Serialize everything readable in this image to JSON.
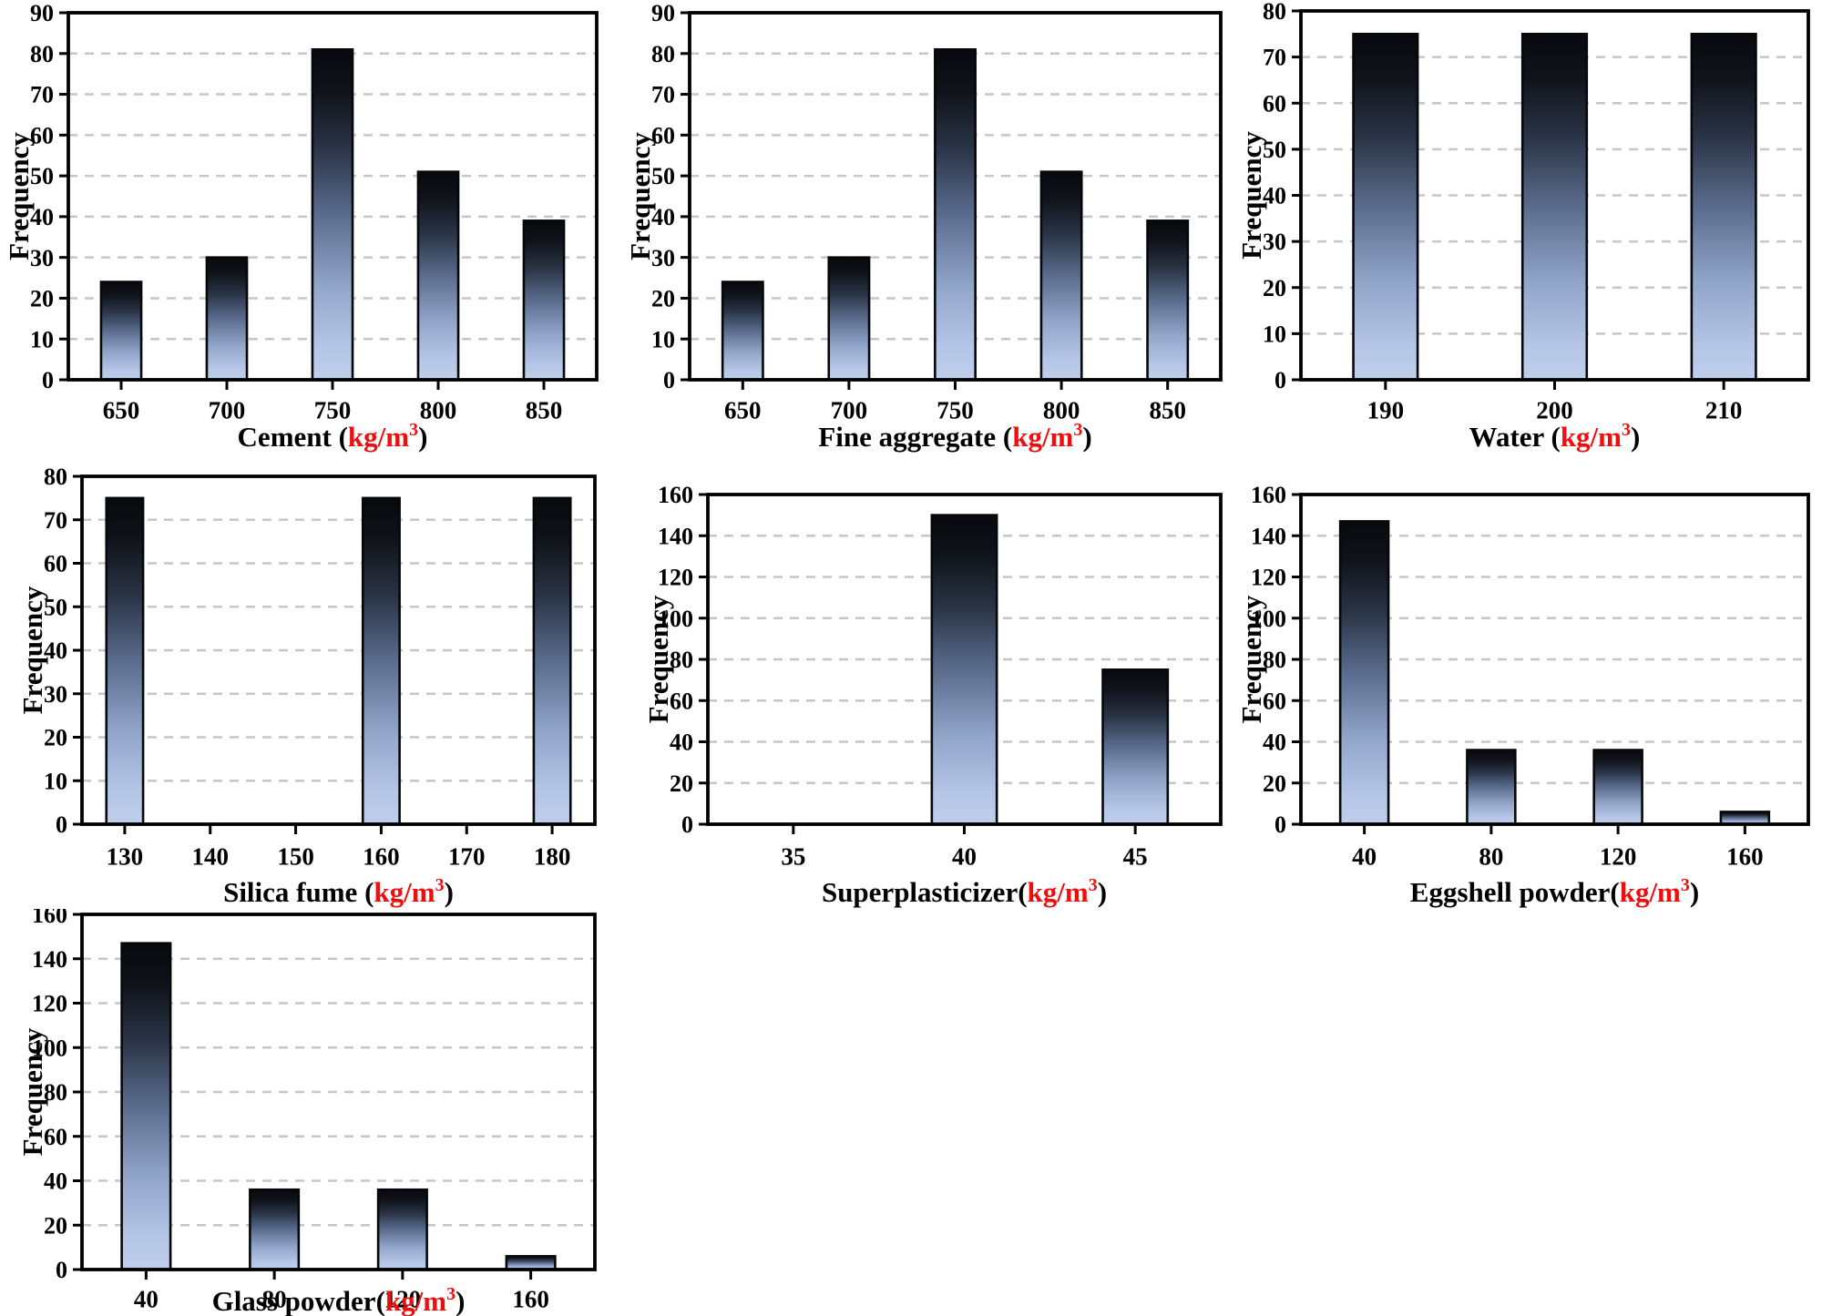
{
  "figure": {
    "description": "Frequency histograms of mixture constituents",
    "background": "#ffffff"
  },
  "styles": {
    "text_color": "#000000",
    "unit_color": "#f20d0d",
    "frame_color": "#000000",
    "bar_border_color": "#06070b",
    "grid_color": "#c6c6c6",
    "bar_gradient": [
      [
        0.0,
        "#08090d"
      ],
      [
        0.13,
        "#10131a"
      ],
      [
        0.3,
        "#2a3446"
      ],
      [
        0.5,
        "#5a6c8d"
      ],
      [
        0.72,
        "#92a6ca"
      ],
      [
        0.9,
        "#b4c5e6"
      ],
      [
        1.0,
        "#bfcfec"
      ]
    ]
  },
  "chart_data": [
    {
      "id": "cement",
      "type": "bar",
      "ylabel": "Frequency",
      "ylim": [
        0,
        90
      ],
      "ytick_step": 10,
      "yticks": [
        "0",
        "10",
        "20",
        "30",
        "40",
        "50",
        "60",
        "70",
        "80",
        "90"
      ],
      "grid": "horizontal-dashed",
      "legend": "none",
      "xlabel": {
        "black_prefix": "Cement (",
        "red_unit": "kg/m",
        "red_sup": "3",
        "black_suffix": ")"
      },
      "x": {
        "mode": "categorical",
        "ticks": [
          "650",
          "700",
          "750",
          "800",
          "850"
        ]
      },
      "bars": [
        {
          "x": "650",
          "value": 24
        },
        {
          "x": "700",
          "value": 30
        },
        {
          "x": "750",
          "value": 81
        },
        {
          "x": "800",
          "value": 51
        },
        {
          "x": "850",
          "value": 39
        }
      ]
    },
    {
      "id": "fine-aggregate",
      "type": "bar",
      "ylabel": "Frequency",
      "ylim": [
        0,
        90
      ],
      "ytick_step": 10,
      "yticks": [
        "0",
        "10",
        "20",
        "30",
        "40",
        "50",
        "60",
        "70",
        "80",
        "90"
      ],
      "grid": "horizontal-dashed",
      "legend": "none",
      "xlabel": {
        "black_prefix": "Fine aggregate (",
        "red_unit": "kg/m",
        "red_sup": "3",
        "black_suffix": ")"
      },
      "x": {
        "mode": "categorical",
        "ticks": [
          "650",
          "700",
          "750",
          "800",
          "850"
        ]
      },
      "bars": [
        {
          "x": "650",
          "value": 24
        },
        {
          "x": "700",
          "value": 30
        },
        {
          "x": "750",
          "value": 81
        },
        {
          "x": "800",
          "value": 51
        },
        {
          "x": "850",
          "value": 39
        }
      ]
    },
    {
      "id": "water",
      "type": "bar",
      "ylabel": "Frequency",
      "ylim": [
        0,
        80
      ],
      "ytick_step": 10,
      "yticks": [
        "0",
        "10",
        "20",
        "30",
        "40",
        "50",
        "60",
        "70",
        "80"
      ],
      "grid": "horizontal-dashed",
      "legend": "none",
      "xlabel": {
        "black_prefix": "Water (",
        "red_unit": "kg/m",
        "red_sup": "3",
        "black_suffix": ")"
      },
      "x": {
        "mode": "categorical",
        "ticks": [
          "190",
          "200",
          "210"
        ]
      },
      "bars": [
        {
          "x": "190",
          "value": 75
        },
        {
          "x": "200",
          "value": 75
        },
        {
          "x": "210",
          "value": 75
        }
      ]
    },
    {
      "id": "silica-fume",
      "type": "bar",
      "ylabel": "Frequency",
      "ylim": [
        0,
        80
      ],
      "ytick_step": 10,
      "yticks": [
        "0",
        "10",
        "20",
        "30",
        "40",
        "50",
        "60",
        "70",
        "80"
      ],
      "grid": "horizontal-dashed",
      "legend": "none",
      "xlabel": {
        "black_prefix": "Silica fume (",
        "red_unit": "kg/m",
        "red_sup": "3",
        "black_suffix": ")"
      },
      "x": {
        "mode": "linear",
        "domain": [
          125,
          185
        ],
        "ticks": [
          "130",
          "140",
          "150",
          "160",
          "170",
          "180"
        ],
        "bar_width_units": 4.3
      },
      "bars": [
        {
          "x": 130,
          "value": 75
        },
        {
          "x": 160,
          "value": 75
        },
        {
          "x": 180,
          "value": 75
        }
      ]
    },
    {
      "id": "superplasticizer",
      "type": "bar",
      "ylabel": "Frequency",
      "ylim": [
        0,
        160
      ],
      "ytick_step": 20,
      "yticks": [
        "0",
        "20",
        "40",
        "60",
        "80",
        "100",
        "120",
        "140",
        "160"
      ],
      "grid": "horizontal-dashed",
      "legend": "none",
      "xlabel": {
        "black_prefix": "Superplasticizer(",
        "red_unit": "kg/m",
        "red_sup": "3",
        "black_suffix": ")"
      },
      "x": {
        "mode": "categorical",
        "ticks": [
          "35",
          "40",
          "45"
        ]
      },
      "bars": [
        {
          "x": "40",
          "value": 150
        },
        {
          "x": "45",
          "value": 75
        }
      ]
    },
    {
      "id": "eggshell-powder",
      "type": "bar",
      "ylabel": "Frequency",
      "ylim": [
        0,
        160
      ],
      "ytick_step": 20,
      "yticks": [
        "0",
        "20",
        "40",
        "60",
        "80",
        "100",
        "120",
        "140",
        "160"
      ],
      "grid": "horizontal-dashed",
      "legend": "none",
      "xlabel": {
        "black_prefix": "Eggshell powder(",
        "red_unit": "kg/m",
        "red_sup": "3",
        "black_suffix": ")"
      },
      "x": {
        "mode": "categorical",
        "ticks": [
          "40",
          "80",
          "120",
          "160"
        ]
      },
      "bars": [
        {
          "x": "40",
          "value": 147
        },
        {
          "x": "80",
          "value": 36
        },
        {
          "x": "120",
          "value": 36
        },
        {
          "x": "160",
          "value": 6
        }
      ]
    },
    {
      "id": "glass-powder",
      "type": "bar",
      "ylabel": "Frequency",
      "ylim": [
        0,
        160
      ],
      "ytick_step": 20,
      "yticks": [
        "0",
        "20",
        "40",
        "60",
        "80",
        "100",
        "120",
        "140",
        "160"
      ],
      "grid": "horizontal-dashed",
      "legend": "none",
      "xlabel": {
        "black_prefix": "Glass powder(",
        "red_unit": "kg/m",
        "red_sup": "3",
        "black_suffix": ")"
      },
      "x": {
        "mode": "categorical",
        "ticks": [
          "40",
          "80",
          "120",
          "160"
        ]
      },
      "bars": [
        {
          "x": "40",
          "value": 147
        },
        {
          "x": "80",
          "value": 36
        },
        {
          "x": "120",
          "value": 36
        },
        {
          "x": "160",
          "value": 6
        }
      ]
    }
  ]
}
